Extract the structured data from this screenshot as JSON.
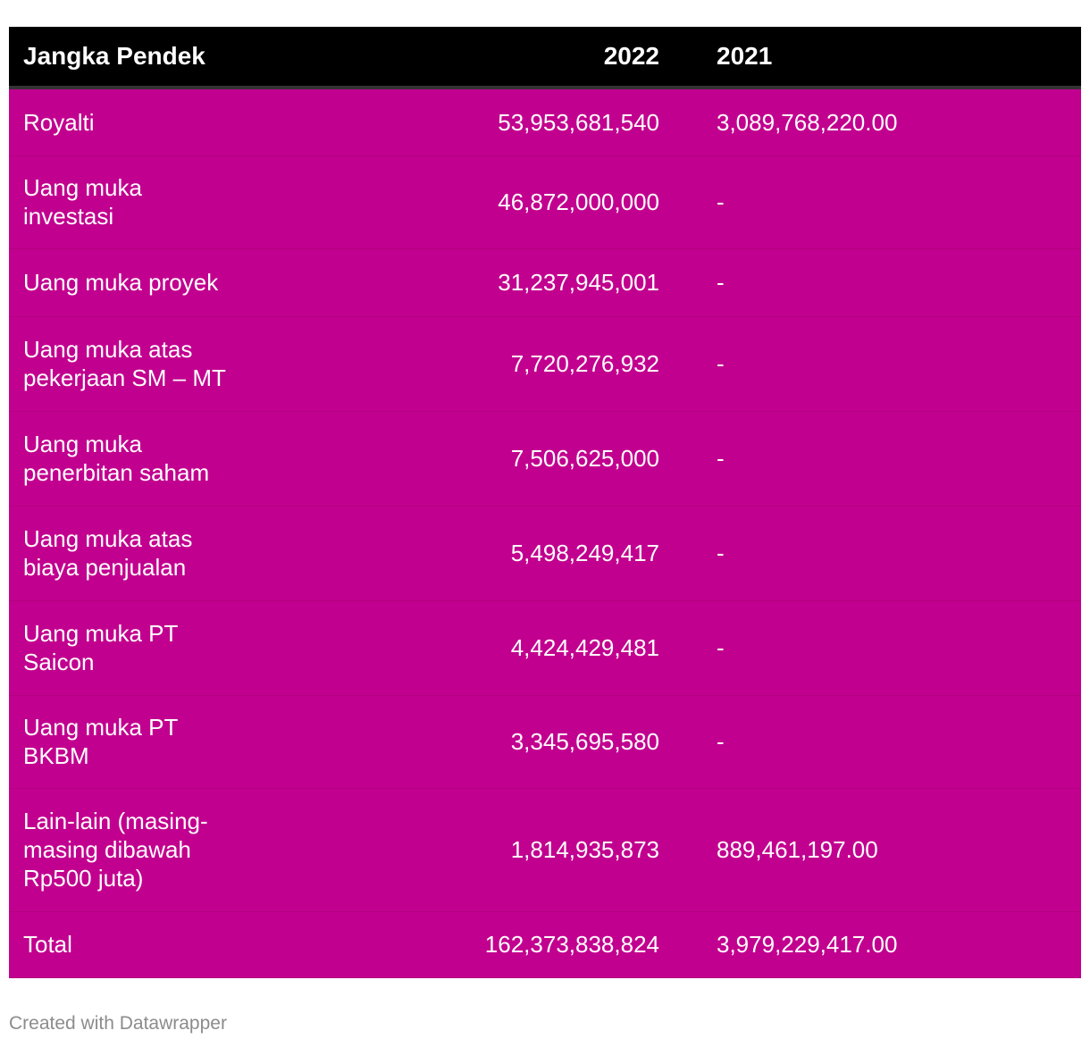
{
  "chart_data": {
    "type": "table",
    "columns": [
      "Jangka Pendek",
      "2022",
      "2021"
    ],
    "rows": [
      {
        "label": "Royalti",
        "v2022": "53,953,681,540",
        "v2021": "3,089,768,220.00"
      },
      {
        "label": "Uang muka investasi",
        "v2022": "46,872,000,000",
        "v2021": "-"
      },
      {
        "label": "Uang muka proyek",
        "v2022": "31,237,945,001",
        "v2021": "-"
      },
      {
        "label": "Uang muka atas pekerjaan SM – MT",
        "v2022": "7,720,276,932",
        "v2021": "-"
      },
      {
        "label": "Uang muka penerbitan saham",
        "v2022": "7,506,625,000",
        "v2021": "-"
      },
      {
        "label": "Uang muka atas biaya penjualan",
        "v2022": "5,498,249,417",
        "v2021": "-"
      },
      {
        "label": "Uang muka PT Saicon",
        "v2022": "4,424,429,481",
        "v2021": "-"
      },
      {
        "label": "Uang muka PT BKBM",
        "v2022": "3,345,695,580",
        "v2021": "-"
      },
      {
        "label": "Lain-lain (masing-masing dibawah Rp500 juta)",
        "v2022": "1,814,935,873",
        "v2021": "889,461,197.00"
      },
      {
        "label": "Total",
        "v2022": "162,373,838,824",
        "v2021": "3,979,229,417.00"
      }
    ]
  },
  "footer": "Created with Datawrapper",
  "colors": {
    "header_bg": "#000000",
    "row_bg": "#c2008f",
    "text": "#ffffff",
    "footer": "#8c8c8c"
  }
}
